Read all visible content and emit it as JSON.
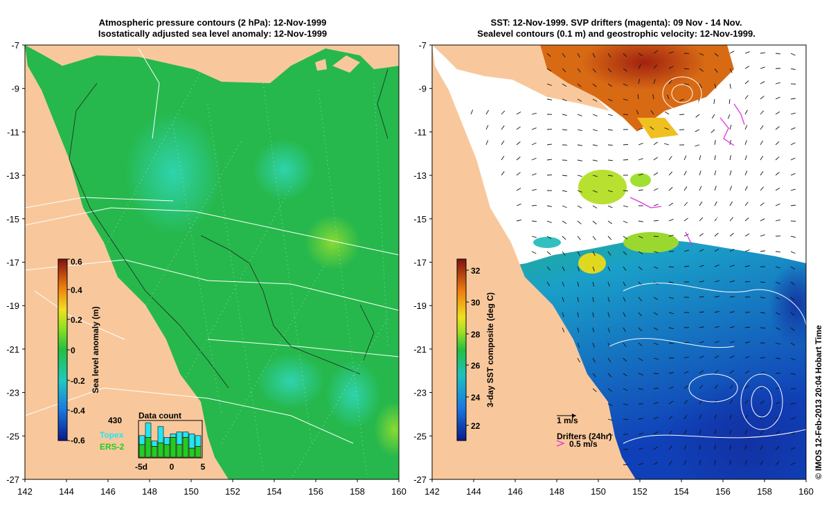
{
  "left_panel": {
    "title_line1": "Atmospheric pressure contours (2 hPa): 12-Nov-1999",
    "title_line2": "Isostatically adjusted sea level anomaly: 12-Nov-1999",
    "colorbar": {
      "label": "Sea level anomaly (m)",
      "ticks": [
        "0.6",
        "0.4",
        "0.2",
        "0",
        "-0.2",
        "-0.4",
        "-0.6"
      ]
    },
    "inset": {
      "title": "Data count",
      "max_count": "430",
      "series": [
        {
          "name": "Topex",
          "color": "#22e6f0"
        },
        {
          "name": "ERS-2",
          "color": "#22cc22"
        }
      ],
      "xticks": [
        "-5d",
        "0",
        "5"
      ],
      "bars": [
        {
          "topex": 0.25,
          "ers": 0.35
        },
        {
          "topex": 0.4,
          "ers": 0.55
        },
        {
          "topex": 0.15,
          "ers": 0.3
        },
        {
          "topex": 0.45,
          "ers": 0.4
        },
        {
          "topex": 0.2,
          "ers": 0.35
        },
        {
          "topex": 0.1,
          "ers": 0.55
        },
        {
          "topex": 0.35,
          "ers": 0.35
        },
        {
          "topex": 0.15,
          "ers": 0.55
        },
        {
          "topex": 0.4,
          "ers": 0.25
        },
        {
          "topex": 0.3,
          "ers": 0.3
        }
      ]
    }
  },
  "right_panel": {
    "title_line1": "SST: 12-Nov-1999. SVP drifters (magenta): 09 Nov - 14 Nov.",
    "title_line2": "Sealevel contours (0.1 m) and geostrophic velocity: 12-Nov-1999.",
    "colorbar": {
      "label": "3-day SST composite (deg C)",
      "ticks": [
        "32",
        "30",
        "28",
        "26",
        "24",
        "22"
      ]
    },
    "scale_arrow_label": "1 m/s",
    "drifters_label": "Drifters (24hr)",
    "drifter_speed_label": "0.5 m/s"
  },
  "axes": {
    "y_ticks": [
      "-7",
      "-9",
      "-11",
      "-13",
      "-15",
      "-17",
      "-19",
      "-21",
      "-23",
      "-25",
      "-27"
    ],
    "x_ticks": [
      "142",
      "144",
      "146",
      "148",
      "150",
      "152",
      "154",
      "156",
      "158",
      "160"
    ]
  },
  "credit": "© IMOS 12-Feb-2013 20:04 Hobart Time",
  "colors": {
    "land": "#f8c89c",
    "ocean_base": "#26b84c",
    "drifter": "#e030e0"
  }
}
